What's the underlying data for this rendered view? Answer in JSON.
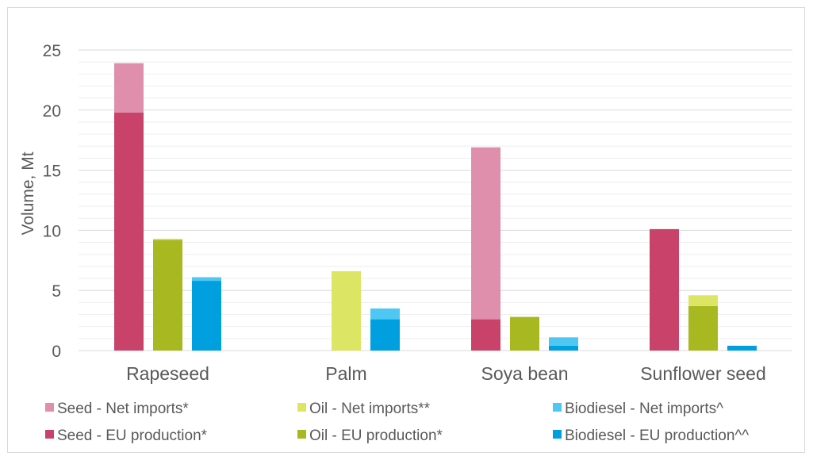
{
  "chart_data": {
    "type": "bar",
    "stacked": true,
    "categories": [
      "Rapeseed",
      "Palm",
      "Soya bean",
      "Sunflower seed"
    ],
    "ylabel": "Volume,  Mt",
    "ylim": [
      0,
      25
    ],
    "yticks": [
      0,
      5,
      10,
      15,
      20,
      25
    ],
    "grid": true,
    "legend_position": "bottom",
    "groups": [
      {
        "name": "Seed",
        "stack": [
          {
            "name": "Seed - EU production*",
            "color": "#c8426a",
            "values": [
              19.8,
              0,
              2.6,
              10.1
            ]
          },
          {
            "name": "Seed - Net imports*",
            "color": "#df8fab",
            "values": [
              4.1,
              0,
              14.3,
              0
            ]
          }
        ]
      },
      {
        "name": "Oil",
        "stack": [
          {
            "name": "Oil - EU production*",
            "color": "#a8b820",
            "values": [
              9.2,
              0,
              2.8,
              3.7
            ]
          },
          {
            "name": "Oil - Net imports**",
            "color": "#dde565",
            "values": [
              0.1,
              6.6,
              0,
              0.9
            ]
          }
        ]
      },
      {
        "name": "Biodiesel",
        "stack": [
          {
            "name": "Biodiesel - EU production^^",
            "color": "#009fe0",
            "values": [
              5.8,
              2.6,
              0.4,
              0.4
            ]
          },
          {
            "name": "Biodiesel - Net imports^",
            "color": "#4fc7f3",
            "values": [
              0.3,
              0.9,
              0.7,
              0
            ]
          }
        ]
      }
    ],
    "legend": [
      {
        "label": "Seed - Net imports*",
        "color": "#df8fab"
      },
      {
        "label": "Oil - Net imports**",
        "color": "#dde565"
      },
      {
        "label": "Biodiesel - Net imports^",
        "color": "#4fc7f3"
      },
      {
        "label": "Seed - EU production*",
        "color": "#c8426a"
      },
      {
        "label": "Oil - EU production*",
        "color": "#a8b820"
      },
      {
        "label": "Biodiesel - EU production^^",
        "color": "#009fe0"
      }
    ]
  }
}
